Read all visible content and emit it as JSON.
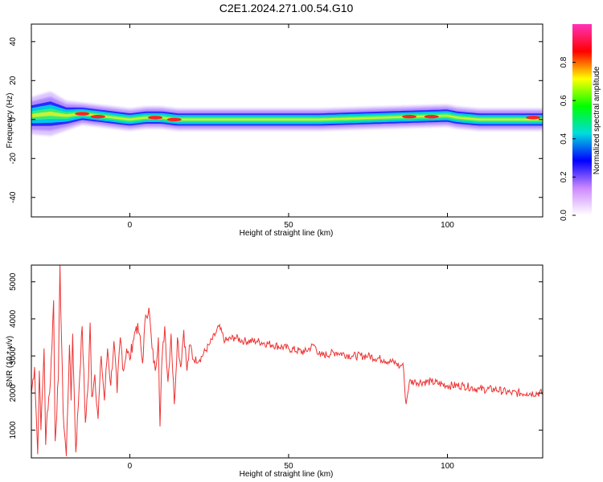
{
  "title": "C2E1.2024.271.00.54.G10",
  "chart_data": [
    {
      "type": "heatmap",
      "xlabel": "Height of straight line (km)",
      "ylabel": "Frequency (Hz)",
      "xlim": [
        -31,
        130
      ],
      "ylim": [
        -50,
        49
      ],
      "x_ticks": [
        0,
        50,
        100
      ],
      "x_tick_labels": [
        "0",
        "50",
        "100"
      ],
      "y_ticks": [
        -40,
        -20,
        0,
        20,
        40
      ],
      "y_tick_labels": [
        "-40",
        "-20",
        "0",
        "20",
        "40"
      ],
      "colorbar": {
        "label": "Normalized spectral amplitude",
        "range": [
          0,
          1
        ],
        "ticks": [
          0.0,
          0.2,
          0.4,
          0.6,
          0.8
        ],
        "tick_labels": [
          "0.0",
          "0.2",
          "0.4",
          "0.6",
          "0.8"
        ],
        "colors": [
          "#ffffff",
          "#cc88ff",
          "#0000ff",
          "#00dddd",
          "#00ff00",
          "#ffff00",
          "#ff0000",
          "#ff33bb"
        ]
      },
      "ridge": {
        "x": [
          -31,
          -25,
          -20,
          -15,
          -10,
          -5,
          0,
          5,
          10,
          15,
          20,
          30,
          40,
          50,
          60,
          70,
          80,
          90,
          100,
          103,
          110,
          120,
          130
        ],
        "center_hz": [
          2,
          3,
          2,
          3,
          2,
          1,
          0,
          1,
          1,
          0,
          0,
          0,
          0,
          0,
          0,
          0.5,
          1,
          1.5,
          2,
          1,
          0,
          0,
          0
        ],
        "half_width_hz": [
          5,
          6,
          4,
          3,
          3,
          3,
          3,
          3,
          3,
          3,
          3,
          3,
          3,
          3,
          3,
          3,
          3,
          3,
          3,
          3,
          3,
          3,
          3
        ]
      },
      "peaks": [
        {
          "x": -15,
          "hz": 3
        },
        {
          "x": -10,
          "hz": 1.5
        },
        {
          "x": 8,
          "hz": 1
        },
        {
          "x": 14,
          "hz": 0
        },
        {
          "x": 88,
          "hz": 1.5
        },
        {
          "x": 95,
          "hz": 1.5
        },
        {
          "x": 127,
          "hz": 1
        }
      ]
    },
    {
      "type": "line",
      "xlabel": "Height of straight line (km)",
      "ylabel": "SNR (10 * v/v)",
      "xlim": [
        -31,
        130
      ],
      "ylim": [
        250,
        5450
      ],
      "x_ticks": [
        0,
        50,
        100
      ],
      "x_tick_labels": [
        "0",
        "50",
        "100"
      ],
      "y_ticks": [
        1000,
        2000,
        3000,
        4000,
        5000
      ],
      "y_tick_labels": [
        "1000",
        "2000",
        "3000",
        "4000",
        "5000"
      ],
      "series": [
        {
          "color": "#ee3333",
          "x": [
            -31,
            -30,
            -29,
            -28.5,
            -28,
            -27,
            -26.5,
            -26,
            -25,
            -24,
            -23.5,
            -22.5,
            -22,
            -21,
            -20,
            -19,
            -18.5,
            -18,
            -17,
            -16,
            -15,
            -14,
            -13,
            -12.5,
            -12,
            -11,
            -10,
            -9,
            -8,
            -7,
            -6,
            -5,
            -4,
            -3,
            -2,
            -1,
            0,
            1,
            2,
            3,
            4,
            5,
            6,
            7,
            8,
            9,
            9.5,
            10,
            11,
            12,
            13,
            14,
            15,
            16,
            17,
            18,
            19,
            20,
            22,
            25,
            27,
            28,
            30,
            33,
            36,
            40,
            45,
            50,
            55,
            58,
            60,
            65,
            70,
            75,
            80,
            84,
            85,
            86,
            86.5,
            87,
            88,
            90,
            95,
            100,
            105,
            110,
            115,
            120,
            125,
            130
          ],
          "y": [
            2000,
            2700,
            350,
            2600,
            1000,
            3200,
            600,
            1500,
            2300,
            4500,
            700,
            2400,
            5450,
            1500,
            300,
            3300,
            1800,
            3600,
            400,
            2100,
            3800,
            1200,
            2400,
            3900,
            1900,
            2500,
            1300,
            3000,
            1800,
            3200,
            2200,
            3400,
            2000,
            3500,
            2600,
            3200,
            2900,
            3400,
            3800,
            3600,
            2800,
            4100,
            4300,
            3200,
            2600,
            3500,
            1100,
            2700,
            3800,
            2300,
            3600,
            1700,
            3500,
            2700,
            3700,
            2600,
            3300,
            2900,
            2900,
            3300,
            3600,
            3800,
            3400,
            3500,
            3400,
            3400,
            3300,
            3200,
            3100,
            3300,
            3000,
            3100,
            3000,
            3000,
            2900,
            2800,
            2700,
            2800,
            2200,
            1700,
            2300,
            2300,
            2300,
            2200,
            2200,
            2100,
            2100,
            2000,
            2000,
            2000
          ]
        }
      ]
    }
  ]
}
